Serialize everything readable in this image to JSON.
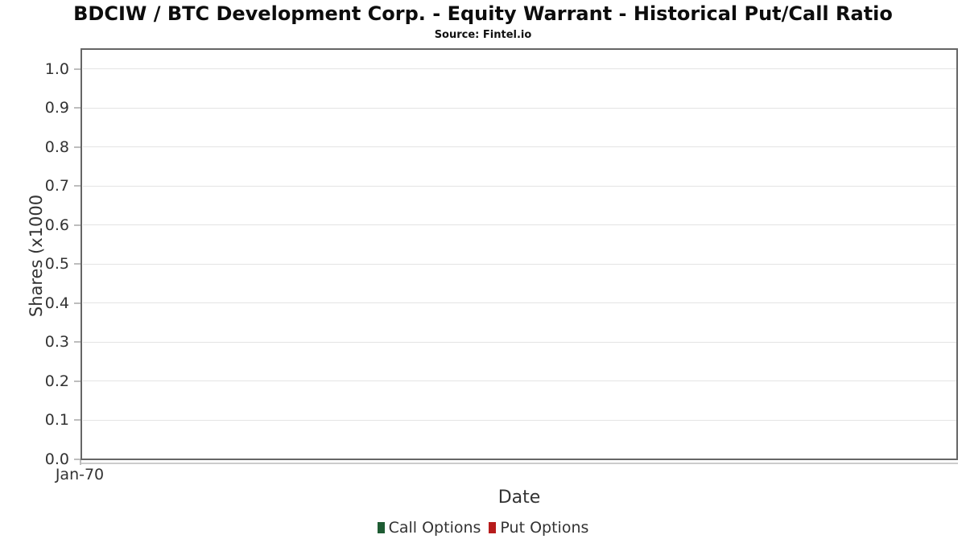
{
  "chart": {
    "title": "BDCIW / BTC Development Corp. - Equity Warrant - Historical Put/Call Ratio",
    "subtitle": "Source: Fintel.io",
    "xlabel": "Date",
    "ylabel": "Shares (x1000",
    "x_ticks": [
      "Jan-70"
    ],
    "y_ticks": [
      "1.0",
      "0.9",
      "0.8",
      "0.7",
      "0.6",
      "0.5",
      "0.4",
      "0.3",
      "0.2",
      "0.1",
      "0.0"
    ],
    "legend": [
      {
        "label": "Call Options",
        "color": "#1e5c33"
      },
      {
        "label": "Put Options",
        "color": "#b71c1c"
      }
    ],
    "colors": {
      "plot_border": "#666666",
      "gridline": "#e4e4e4",
      "tick": "#bdbdbd",
      "axis_line": "#cccccc",
      "text": "#333333",
      "title_text": "#0d0d0d"
    }
  },
  "chart_data": {
    "type": "bar",
    "title": "BDCIW / BTC Development Corp. - Equity Warrant - Historical Put/Call Ratio",
    "subtitle": "Source: Fintel.io",
    "xlabel": "Date",
    "ylabel": "Shares (x1000",
    "categories": [
      "Jan-70"
    ],
    "series": [
      {
        "name": "Call Options",
        "color": "#1e5c33",
        "values": []
      },
      {
        "name": "Put Options",
        "color": "#b71c1c",
        "values": []
      }
    ],
    "ylim": [
      0.0,
      1.0
    ],
    "y_tick_step": 0.1,
    "grid": true,
    "legend_position": "bottom"
  }
}
